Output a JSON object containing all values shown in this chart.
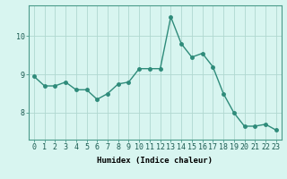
{
  "x": [
    0,
    1,
    2,
    3,
    4,
    5,
    6,
    7,
    8,
    9,
    10,
    11,
    12,
    13,
    14,
    15,
    16,
    17,
    18,
    19,
    20,
    21,
    22,
    23
  ],
  "y": [
    8.95,
    8.7,
    8.7,
    8.8,
    8.6,
    8.6,
    8.35,
    8.5,
    8.75,
    8.8,
    9.15,
    9.15,
    9.15,
    10.5,
    9.8,
    9.45,
    9.55,
    9.2,
    8.5,
    8.0,
    7.65,
    7.65,
    7.7,
    7.55
  ],
  "line_color": "#2e8b7a",
  "marker_color": "#2e8b7a",
  "bg_color": "#d8f5f0",
  "grid_color": "#b0d8d0",
  "xlabel": "Humidex (Indice chaleur)",
  "xlim": [
    -0.5,
    23.5
  ],
  "ylim": [
    7.3,
    10.8
  ],
  "yticks": [
    8,
    9,
    10
  ],
  "xticks": [
    0,
    1,
    2,
    3,
    4,
    5,
    6,
    7,
    8,
    9,
    10,
    11,
    12,
    13,
    14,
    15,
    16,
    17,
    18,
    19,
    20,
    21,
    22,
    23
  ],
  "xlabel_fontsize": 6.5,
  "tick_fontsize": 6,
  "marker_size": 2.5,
  "line_width": 1.0
}
